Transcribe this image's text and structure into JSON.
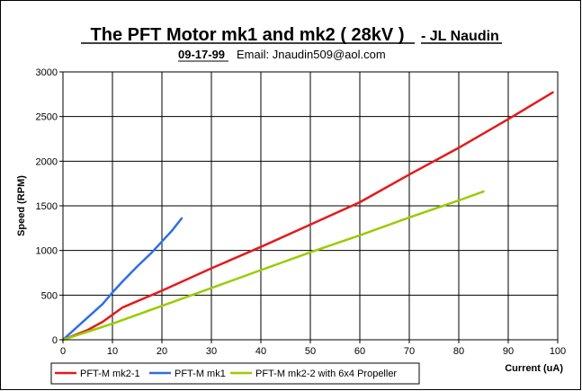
{
  "chart_data": {
    "type": "line",
    "title": "The PFT Motor mk1 and mk2 ( 28kV )",
    "author": "- JL Naudin",
    "date": "09-17-99",
    "email": "Email: Jnaudin509@aol.com",
    "xlabel": "Current (uA)",
    "ylabel": "Speed (RPM)",
    "xlim": [
      0,
      100
    ],
    "ylim": [
      0,
      3000
    ],
    "xticks": [
      "0",
      "10",
      "20",
      "30",
      "40",
      "50",
      "60",
      "70",
      "80",
      "90",
      "100"
    ],
    "yticks": [
      "0",
      "500",
      "1000",
      "1500",
      "2000",
      "2500",
      "3000"
    ],
    "grid": true,
    "legend_position": "bottom",
    "series": [
      {
        "name": "PFT-M mk2-1",
        "color": "#e31a1c",
        "x": [
          0,
          5,
          8,
          10,
          12,
          20,
          30,
          40,
          50,
          60,
          70,
          80,
          90,
          99
        ],
        "y": [
          0,
          110,
          200,
          280,
          360,
          550,
          800,
          1040,
          1290,
          1540,
          1850,
          2150,
          2470,
          2770
        ]
      },
      {
        "name": "PFT-M mk1",
        "color": "#2f6fe0",
        "x": [
          0,
          2,
          5,
          8,
          10,
          12,
          15,
          18,
          20,
          22,
          24
        ],
        "y": [
          0,
          100,
          250,
          400,
          530,
          650,
          820,
          980,
          1100,
          1220,
          1360
        ]
      },
      {
        "name": "PFT-M mk2-2 with 6x4 Propeller",
        "color": "#99cc00",
        "x": [
          0,
          10,
          20,
          30,
          40,
          50,
          60,
          70,
          80,
          85
        ],
        "y": [
          0,
          180,
          380,
          580,
          780,
          980,
          1170,
          1370,
          1560,
          1660
        ]
      }
    ]
  }
}
